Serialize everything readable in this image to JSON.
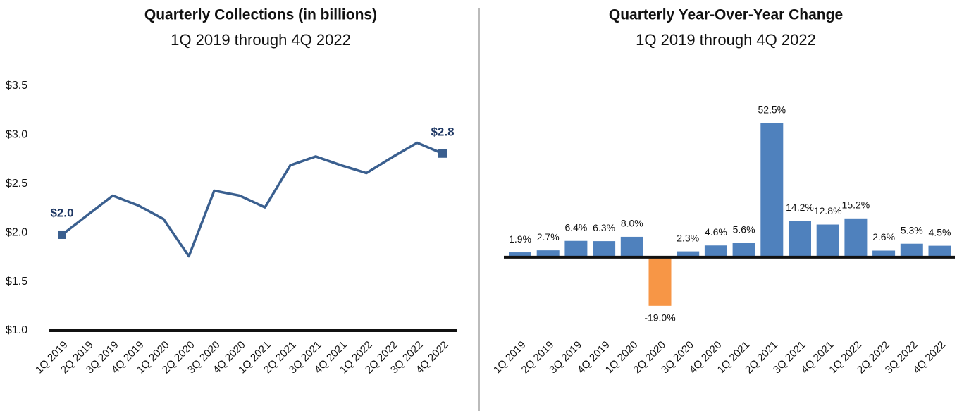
{
  "chart_data": [
    {
      "type": "line",
      "title": "Quarterly Collections (in billions)",
      "subtitle": "1Q 2019 through 4Q 2022",
      "categories": [
        "1Q 2019",
        "2Q 2019",
        "3Q 2019",
        "4Q 2019",
        "1Q 2020",
        "2Q 2020",
        "3Q 2020",
        "4Q 2020",
        "1Q 2021",
        "2Q 2021",
        "3Q 2021",
        "4Q 2021",
        "1Q 2022",
        "2Q 2022",
        "3Q 2022",
        "4Q 2022"
      ],
      "values": [
        1.98,
        2.18,
        2.38,
        2.28,
        2.14,
        1.76,
        2.43,
        2.38,
        2.26,
        2.69,
        2.78,
        2.69,
        2.61,
        2.77,
        2.92,
        2.81
      ],
      "value_labels": [
        "$2.0",
        null,
        null,
        null,
        null,
        null,
        null,
        null,
        null,
        null,
        null,
        null,
        null,
        null,
        null,
        "$2.8"
      ],
      "color": "#3a5f8f",
      "ylim": [
        1.0,
        3.5
      ],
      "yticks": [
        {
          "value": 1.0,
          "label": "$1.0"
        },
        {
          "value": 1.5,
          "label": "$1.5"
        },
        {
          "value": 2.0,
          "label": "$2.0"
        },
        {
          "value": 2.5,
          "label": "$2.5"
        },
        {
          "value": 3.0,
          "label": "$3.0"
        },
        {
          "value": 3.5,
          "label": "$3.5"
        }
      ]
    },
    {
      "type": "bar",
      "title": "Quarterly Year-Over-Year Change",
      "subtitle": "1Q 2019 through 4Q 2022",
      "categories": [
        "1Q 2019",
        "2Q 2019",
        "3Q 2019",
        "4Q 2019",
        "1Q 2020",
        "2Q 2020",
        "3Q 2020",
        "4Q 2020",
        "1Q 2021",
        "2Q 2021",
        "3Q 2021",
        "4Q 2021",
        "1Q 2022",
        "2Q 2022",
        "3Q 2022",
        "4Q 2022"
      ],
      "values": [
        1.9,
        2.7,
        6.4,
        6.3,
        8.0,
        -19.0,
        2.3,
        4.6,
        5.6,
        52.5,
        14.2,
        12.8,
        15.2,
        2.6,
        5.3,
        4.5
      ],
      "value_labels": [
        "1.9%",
        "2.7%",
        "6.4%",
        "6.3%",
        "8.0%",
        "-19.0%",
        "2.3%",
        "4.6%",
        "5.6%",
        "52.5%",
        "14.2%",
        "12.8%",
        "15.2%",
        "2.6%",
        "5.3%",
        "4.5%"
      ],
      "color": "#4f81bd",
      "negative_color": "#f79646",
      "ylim": [
        -28.7,
        67
      ]
    }
  ]
}
